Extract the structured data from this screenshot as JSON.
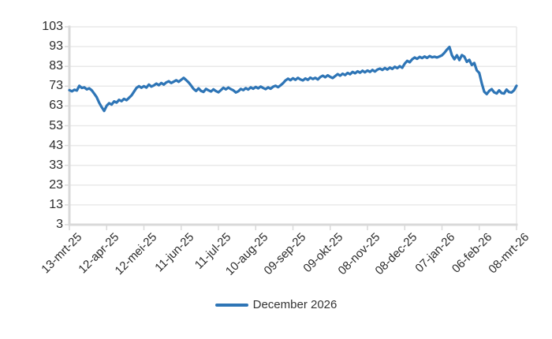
{
  "chart_data": {
    "type": "line",
    "title": "",
    "xlabel": "",
    "ylabel": "",
    "ylim": [
      3,
      103
    ],
    "y_ticks": [
      3,
      13,
      23,
      33,
      43,
      53,
      63,
      73,
      83,
      93,
      103
    ],
    "x_tick_labels": [
      "13-mrt-25",
      "12-apr-25",
      "12-mei-25",
      "11-jun-25",
      "11-jul-25",
      "10-aug-25",
      "09-sep-25",
      "09-okt-25",
      "08-nov-25",
      "08-dec-25",
      "07-jan-26",
      "06-feb-26",
      "08-mrt-26"
    ],
    "x_label_rotation_deg": 45,
    "grid": "horizontal",
    "legend_position": "bottom-center",
    "series": [
      {
        "name": "December 2026",
        "color": "#2E75B6",
        "values": [
          71.0,
          70.4,
          71.2,
          70.8,
          73.2,
          72.1,
          72.4,
          71.4,
          71.9,
          70.9,
          69.2,
          67.4,
          64.6,
          62.4,
          60.5,
          63.1,
          64.4,
          63.7,
          65.3,
          64.7,
          66.1,
          65.4,
          66.6,
          65.9,
          67.1,
          68.3,
          70.2,
          72.1,
          73.0,
          72.2,
          73.0,
          72.3,
          73.8,
          72.8,
          73.4,
          74.3,
          73.5,
          74.6,
          73.8,
          74.9,
          75.5,
          74.6,
          75.3,
          76.0,
          75.2,
          76.2,
          77.2,
          76.1,
          74.9,
          73.3,
          71.6,
          70.6,
          71.9,
          70.6,
          70.1,
          71.6,
          70.9,
          70.3,
          71.4,
          70.5,
          69.9,
          71.0,
          72.2,
          71.4,
          72.3,
          71.5,
          70.9,
          69.8,
          70.4,
          71.6,
          71.0,
          72.0,
          71.3,
          72.4,
          71.7,
          72.6,
          71.9,
          72.8,
          72.1,
          71.5,
          72.4,
          71.7,
          72.7,
          73.2,
          72.5,
          73.4,
          74.5,
          75.9,
          76.8,
          76.0,
          77.0,
          76.2,
          77.2,
          76.4,
          75.9,
          76.9,
          76.2,
          77.3,
          76.6,
          77.2,
          76.4,
          77.6,
          78.3,
          77.5,
          78.5,
          77.7,
          77.1,
          78.1,
          79.1,
          78.3,
          79.3,
          78.6,
          79.7,
          79.0,
          80.2,
          79.5,
          80.5,
          79.8,
          80.8,
          80.0,
          80.9,
          80.2,
          81.2,
          80.4,
          81.4,
          81.9,
          81.2,
          82.2,
          81.4,
          82.4,
          81.7,
          82.8,
          82.1,
          83.1,
          82.3,
          84.4,
          85.8,
          85.1,
          86.6,
          87.5,
          86.8,
          87.8,
          87.2,
          88.0,
          87.3,
          88.2,
          87.6,
          87.9,
          87.5,
          88.0,
          88.6,
          89.9,
          91.5,
          92.8,
          88.6,
          86.6,
          88.6,
          86.2,
          88.7,
          87.9,
          85.3,
          86.3,
          83.7,
          84.7,
          81.0,
          79.7,
          74.5,
          70.2,
          69.0,
          70.6,
          71.5,
          69.9,
          69.3,
          70.9,
          69.5,
          69.3,
          71.3,
          70.0,
          69.8,
          70.9,
          73.2
        ]
      }
    ]
  },
  "colors": {
    "background": "#FFFFFF",
    "line": "#2E75B6",
    "gridline": "#E9E9E9",
    "axis": "#D9D9D9",
    "text": "#2B2B2B"
  }
}
